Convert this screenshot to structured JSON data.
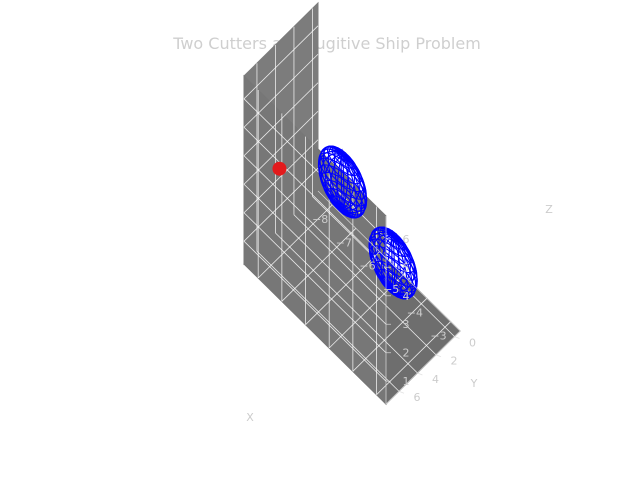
{
  "chart_data": {
    "type": "scatter",
    "title": "Two Cutters and Fugitive Ship Problem",
    "xlabel": "X",
    "ylabel": "Y",
    "zlabel": "Z",
    "x_ticks": [
      "−8",
      "−7",
      "−6",
      "−5",
      "−4",
      "−3"
    ],
    "y_ticks": [
      "0",
      "2",
      "4",
      "6"
    ],
    "z_ticks": [
      "1",
      "2",
      "3",
      "4",
      "5",
      "6"
    ],
    "xlim": [
      -8.6,
      -2.6
    ],
    "ylim": [
      -0.6,
      7.4
    ],
    "zlim": [
      0.2,
      6.8
    ],
    "grid": true,
    "pane_color": "#777777",
    "grid_color": "#ffffff",
    "series": [
      {
        "name": "",
        "kind": "wireframe-sphere",
        "color": "#0000ff",
        "center": [
          -5.1,
          5.7,
          5.4
        ],
        "radius": 0.95
      },
      {
        "name": "",
        "kind": "wireframe-sphere",
        "color": "#0000ff",
        "center": [
          -4.8,
          1.0,
          1.3
        ],
        "radius": 0.95
      },
      {
        "name": "",
        "kind": "point",
        "color": "#e31a1c",
        "center": [
          -8.0,
          5.1,
          3.3
        ]
      }
    ]
  }
}
